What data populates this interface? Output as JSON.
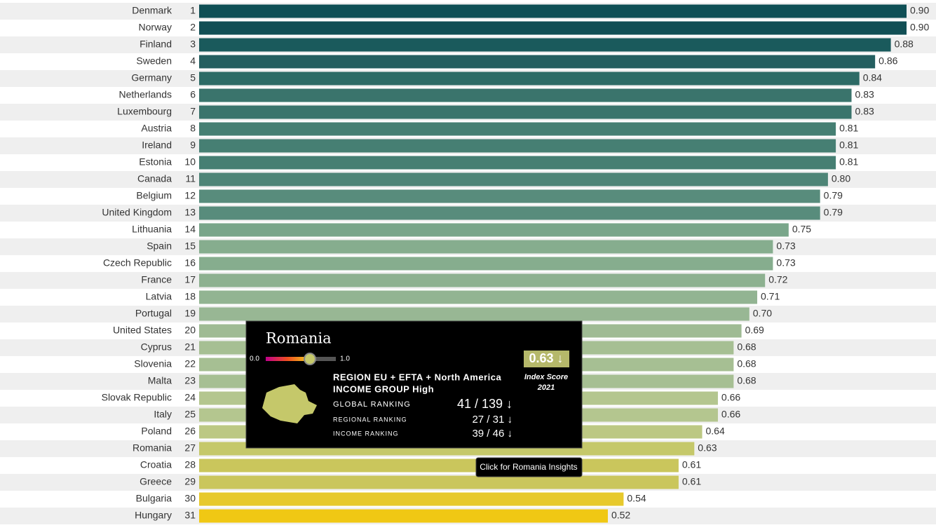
{
  "chart_data": {
    "type": "bar",
    "orientation": "horizontal",
    "categories": [
      "Denmark",
      "Norway",
      "Finland",
      "Sweden",
      "Germany",
      "Netherlands",
      "Luxembourg",
      "Austria",
      "Ireland",
      "Estonia",
      "Canada",
      "Belgium",
      "United Kingdom",
      "Lithuania",
      "Spain",
      "Czech Republic",
      "France",
      "Latvia",
      "Portugal",
      "United States",
      "Cyprus",
      "Slovenia",
      "Malta",
      "Slovak Republic",
      "Italy",
      "Poland",
      "Romania",
      "Croatia",
      "Greece",
      "Bulgaria",
      "Hungary"
    ],
    "ranks": [
      1,
      2,
      3,
      4,
      5,
      6,
      7,
      8,
      9,
      10,
      11,
      12,
      13,
      14,
      15,
      16,
      17,
      18,
      19,
      20,
      21,
      22,
      23,
      24,
      25,
      26,
      27,
      28,
      29,
      30,
      31
    ],
    "values": [
      0.9,
      0.9,
      0.88,
      0.86,
      0.84,
      0.83,
      0.83,
      0.81,
      0.81,
      0.81,
      0.8,
      0.79,
      0.79,
      0.75,
      0.73,
      0.73,
      0.72,
      0.71,
      0.7,
      0.69,
      0.68,
      0.68,
      0.68,
      0.66,
      0.66,
      0.64,
      0.63,
      0.61,
      0.61,
      0.54,
      0.52
    ],
    "value_labels": [
      "0.90",
      "0.90",
      "0.88",
      "0.86",
      "0.84",
      "0.83",
      "0.83",
      "0.81",
      "0.81",
      "0.81",
      "0.80",
      "0.79",
      "0.79",
      "0.75",
      "0.73",
      "0.73",
      "0.72",
      "0.71",
      "0.70",
      "0.69",
      "0.68",
      "0.68",
      "0.68",
      "0.66",
      "0.66",
      "0.64",
      "0.63",
      "0.61",
      "0.61",
      "0.54",
      "0.52"
    ],
    "colors": [
      "#0f4f55",
      "#124f55",
      "#1a5a5c",
      "#245f60",
      "#2d6b66",
      "#3a746c",
      "#3a746c",
      "#467f73",
      "#467f73",
      "#467f73",
      "#4e8577",
      "#588c7c",
      "#588c7c",
      "#79a68a",
      "#86ad8e",
      "#86ad8e",
      "#8db190",
      "#92b492",
      "#98b794",
      "#9fbb94",
      "#a6bf93",
      "#a6bf93",
      "#a6bf93",
      "#b4c68f",
      "#b4c68f",
      "#bcc883",
      "#c5c86a",
      "#cac65c",
      "#cac65c",
      "#e7c92c",
      "#f0c814"
    ]
  },
  "tooltip": {
    "country": "Romania",
    "scale": [
      {
        "value": 0,
        "label": "0.0"
      },
      {
        "value": 1,
        "label": "1.0"
      }
    ],
    "score": 0.63,
    "score_label": "0.63 ↓",
    "score_caption": "Index Score",
    "year": "2021",
    "region": "REGION EU + EFTA + North America",
    "income_group": "INCOME GROUP High",
    "global_label": "GLOBAL RANKING",
    "global_value": "41 / 139 ↓",
    "regional_label": "REGIONAL RANKING",
    "regional_value": "27 / 31 ↓",
    "income_label": "INCOME RANKING",
    "income_value": "39 / 46 ↓",
    "hint": "Click for Romania Insights"
  }
}
